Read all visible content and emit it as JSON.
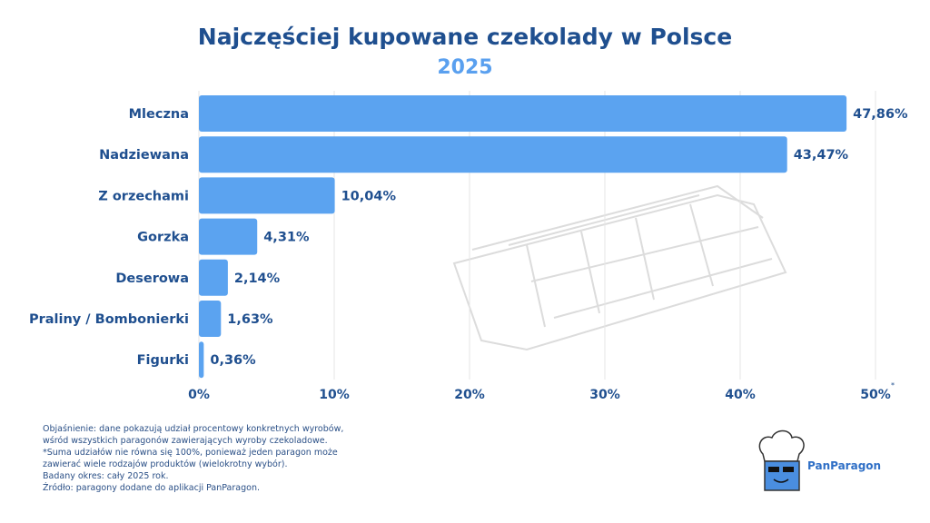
{
  "title": "Najczęściej kupowane czekolady w Polsce",
  "subtitle": "2025",
  "chart_data": {
    "type": "bar",
    "orientation": "horizontal",
    "title": "Najczęściej kupowane czekolady w Polsce",
    "subtitle": "2025",
    "categories": [
      "Mleczna",
      "Nadziewana",
      "Z orzechami",
      "Gorzka",
      "Deserowa",
      "Praliny / Bombonierki",
      "Figurki"
    ],
    "values": [
      47.86,
      43.47,
      10.04,
      4.31,
      2.14,
      1.63,
      0.36
    ],
    "value_labels": [
      "47,86%",
      "43,47%",
      "10,04%",
      "4,31%",
      "2,14%",
      "1,63%",
      "0,36%"
    ],
    "xticks": [
      "0%",
      "10%",
      "20%",
      "30%",
      "40%",
      "50%"
    ],
    "xtick_note": "*",
    "xlim": [
      0,
      50
    ],
    "grid": true,
    "bar_color": "#5ba3f0",
    "label_color": "#1f4f8f"
  },
  "notes": [
    "Objaśnienie: dane pokazują udział procentowy konkretnych wyrobów,",
    "wśród wszystkich paragonów zawierających wyroby czekoladowe.",
    "*Suma udziałów nie równa się 100%, ponieważ jeden paragon może",
    "zawierać wiele rodzajów produktów (wielokrotny wybór).",
    "Badany okres: cały 2025 rok.",
    "Źródło: paragony dodane do aplikacji PanParagon."
  ],
  "brand": "PanParagon"
}
